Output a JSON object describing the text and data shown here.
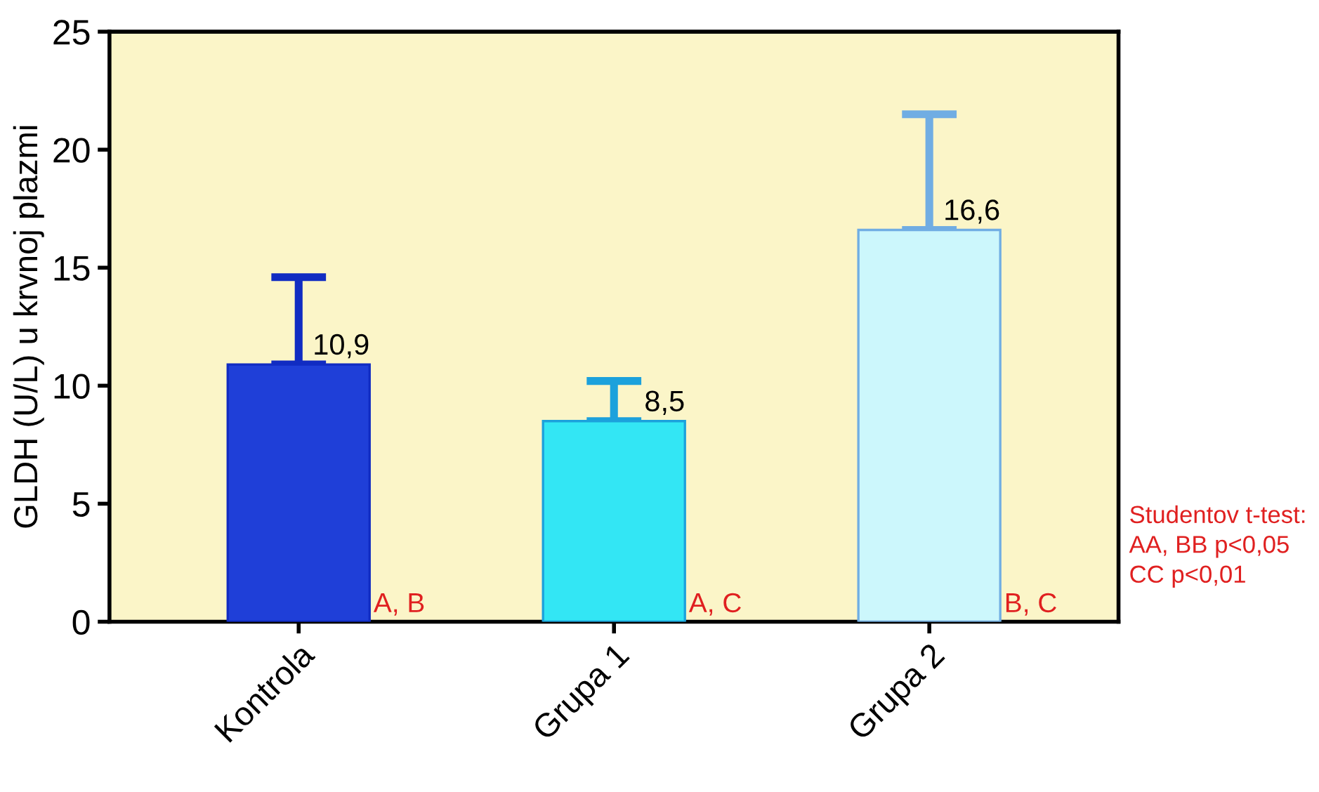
{
  "chart_data": {
    "type": "bar",
    "categories": [
      "Kontrola",
      "Grupa 1",
      "Grupa 2"
    ],
    "values": [
      10.9,
      8.5,
      16.6
    ],
    "value_labels": [
      "10,9",
      "8,5",
      "16,6"
    ],
    "errors": [
      [
        10.9,
        14.6
      ],
      [
        8.5,
        10.2
      ],
      [
        16.6,
        21.5
      ]
    ],
    "colors": [
      "#1f3fd8",
      "#33e6f4",
      "#ccf7fc"
    ],
    "ylabel": "GLDH (U/L) u krvnoj plazmi",
    "ylim": [
      0,
      25
    ],
    "yticks": [
      0,
      5,
      10,
      15,
      20,
      25
    ],
    "grid": false,
    "annotations": [
      {
        "text": "A, B",
        "x": "Kontrola",
        "y": 0
      },
      {
        "text": "A, C",
        "x": "Grupa 1",
        "y": 0
      },
      {
        "text": "B, C",
        "x": "Grupa 2",
        "y": 0
      },
      "Studentov t-test:\nAA, BB p<0,05\nCC p<0,01"
    ]
  }
}
